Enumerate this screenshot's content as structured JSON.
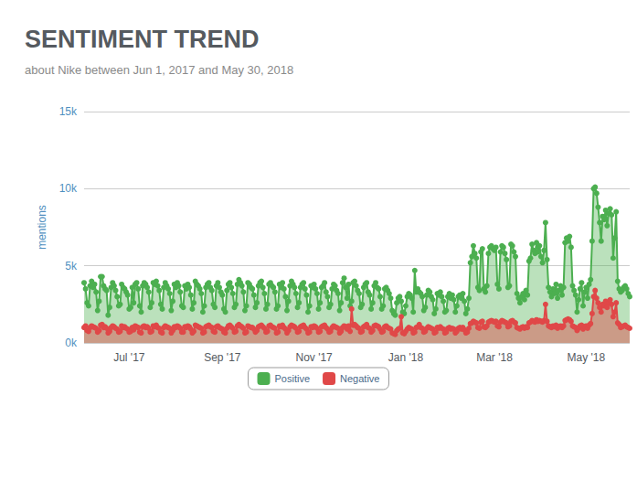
{
  "chart_data": {
    "type": "area",
    "title": "SENTIMENT TREND",
    "subtitle": "about Nike between Jun 1, 2017 and May 30, 2018",
    "ylabel": "mentions",
    "categories": [
      null,
      null,
      null,
      null,
      null,
      null,
      null,
      null,
      null,
      null,
      null,
      null,
      null,
      null,
      null,
      null,
      null,
      null,
      null,
      null,
      null,
      null,
      null,
      null,
      null,
      null,
      null,
      null,
      null,
      null,
      "Jul '17",
      null,
      null,
      null,
      null,
      null,
      null,
      null,
      null,
      null,
      null,
      null,
      null,
      null,
      null,
      null,
      null,
      null,
      null,
      null,
      null,
      null,
      null,
      null,
      null,
      null,
      null,
      null,
      null,
      null,
      null,
      null,
      null,
      null,
      null,
      null,
      null,
      null,
      null,
      null,
      null,
      null,
      null,
      null,
      null,
      null,
      null,
      null,
      null,
      null,
      null,
      null,
      null,
      null,
      null,
      null,
      null,
      null,
      null,
      null,
      null,
      null,
      "Sep '17",
      null,
      null,
      null,
      null,
      null,
      null,
      null,
      null,
      null,
      null,
      null,
      null,
      null,
      null,
      null,
      null,
      null,
      null,
      null,
      null,
      null,
      null,
      null,
      null,
      null,
      null,
      null,
      null,
      null,
      null,
      null,
      null,
      null,
      null,
      null,
      null,
      null,
      null,
      null,
      null,
      null,
      null,
      null,
      null,
      null,
      null,
      null,
      null,
      null,
      null,
      null,
      null,
      null,
      null,
      null,
      null,
      null,
      null,
      null,
      null,
      "Nov '17",
      null,
      null,
      null,
      null,
      null,
      null,
      null,
      null,
      null,
      null,
      null,
      null,
      null,
      null,
      null,
      null,
      null,
      null,
      null,
      null,
      null,
      null,
      null,
      null,
      null,
      null,
      null,
      null,
      null,
      null,
      null,
      null,
      null,
      null,
      null,
      null,
      null,
      null,
      null,
      null,
      null,
      null,
      null,
      null,
      null,
      null,
      null,
      null,
      null,
      null,
      null,
      null,
      null,
      null,
      null,
      null,
      null,
      null,
      null,
      null,
      "Jan '18",
      null,
      null,
      null,
      null,
      null,
      null,
      null,
      null,
      null,
      null,
      null,
      null,
      null,
      null,
      null,
      null,
      null,
      null,
      null,
      null,
      null,
      null,
      null,
      null,
      null,
      null,
      null,
      null,
      null,
      null,
      null,
      null,
      null,
      null,
      null,
      null,
      null,
      null,
      null,
      null,
      null,
      null,
      null,
      null,
      null,
      null,
      null,
      null,
      null,
      null,
      null,
      null,
      null,
      null,
      null,
      null,
      null,
      null,
      "Mar '18",
      null,
      null,
      null,
      null,
      null,
      null,
      null,
      null,
      null,
      null,
      null,
      null,
      null,
      null,
      null,
      null,
      null,
      null,
      null,
      null,
      null,
      null,
      null,
      null,
      null,
      null,
      null,
      null,
      null,
      null,
      null,
      null,
      null,
      null,
      null,
      null,
      null,
      null,
      null,
      null,
      null,
      null,
      null,
      null,
      null,
      null,
      null,
      null,
      null,
      null,
      null,
      null,
      null,
      null,
      null,
      null,
      null,
      null,
      null,
      null,
      "May '18",
      null,
      null,
      null,
      null,
      null,
      null,
      null,
      null,
      null,
      null,
      null,
      null,
      null,
      null,
      null,
      null,
      null,
      null,
      null,
      null,
      null,
      null,
      null,
      null,
      null,
      null,
      null,
      null,
      null
    ],
    "series": [
      {
        "name": "Positive",
        "color": "#4caf50",
        "marker": "circle",
        "values": [
          3900,
          3500,
          2600,
          2400,
          3700,
          4000,
          3600,
          3800,
          3300,
          2100,
          2700,
          4300,
          4300,
          3700,
          3500,
          3400,
          1800,
          2300,
          3600,
          3900,
          3700,
          3400,
          3000,
          2400,
          2500,
          3800,
          3600,
          3500,
          3300,
          3100,
          2200,
          2300,
          3600,
          2600,
          3800,
          3900,
          3500,
          2400,
          2000,
          3700,
          3900,
          3800,
          3600,
          3300,
          2300,
          2600,
          3900,
          3800,
          4000,
          3700,
          3400,
          2500,
          2200,
          3600,
          3900,
          3700,
          3500,
          3200,
          2100,
          2700,
          3800,
          3600,
          3900,
          3700,
          3300,
          2400,
          2300,
          3700,
          3500,
          3800,
          3600,
          3100,
          2200,
          2600,
          4000,
          3800,
          3700,
          3500,
          3200,
          2000,
          2400,
          3600,
          3800,
          3900,
          3600,
          3400,
          2500,
          2300,
          3700,
          3900,
          3600,
          3300,
          3100,
          2200,
          2000,
          3400,
          3800,
          3900,
          3600,
          3200,
          2300,
          2500,
          3800,
          4100,
          3900,
          3700,
          3300,
          2100,
          2400,
          3900,
          3800,
          3600,
          3500,
          3100,
          2300,
          2600,
          3700,
          3900,
          4000,
          3600,
          3200,
          2200,
          2500,
          3800,
          3900,
          3700,
          3600,
          3300,
          2200,
          2400,
          3800,
          3600,
          3900,
          3500,
          3000,
          2100,
          2700,
          3700,
          4000,
          3800,
          3600,
          3200,
          2300,
          2600,
          3600,
          3800,
          3900,
          3500,
          3100,
          2000,
          2400,
          3700,
          3600,
          3800,
          3500,
          3200,
          2200,
          2600,
          3600,
          3700,
          3900,
          3300,
          3000,
          2300,
          2500,
          3500,
          3800,
          3700,
          3400,
          3200,
          2100,
          2600,
          3900,
          4200,
          3600,
          2900,
          3800,
          2400,
          2700,
          3900,
          4000,
          3700,
          3400,
          3200,
          2300,
          2500,
          3600,
          3800,
          3900,
          3300,
          3100,
          2200,
          2600,
          3700,
          3900,
          3600,
          3500,
          3000,
          2200,
          2400,
          3500,
          3600,
          3400,
          3200,
          2900,
          2100,
          1900,
          1800,
          2600,
          2900,
          3000,
          2700,
          2000,
          1900,
          2400,
          3000,
          3200,
          3100,
          2900,
          2000,
          4700,
          3300,
          3500,
          3300,
          3200,
          3000,
          2100,
          2300,
          3100,
          3400,
          3300,
          3000,
          2800,
          1900,
          2200,
          3200,
          3100,
          3300,
          3000,
          2700,
          2000,
          2100,
          3000,
          3200,
          2900,
          3100,
          2800,
          2000,
          2400,
          3000,
          3100,
          2900,
          3200,
          2700,
          1900,
          2200,
          2900,
          5200,
          5600,
          6300,
          5800,
          5500,
          3600,
          3400,
          5900,
          6100,
          3500,
          3300,
          3700,
          5800,
          6200,
          6300,
          6100,
          6000,
          6200,
          3800,
          3500,
          5900,
          6300,
          6200,
          5800,
          5400,
          3600,
          3700,
          6400,
          6300,
          5900,
          5600,
          3200,
          2900,
          2600,
          3000,
          3200,
          2800,
          3400,
          3100,
          5300,
          5500,
          6400,
          6000,
          5800,
          6500,
          5900,
          6300,
          5600,
          5200,
          6000,
          7800,
          5400,
          3600,
          3300,
          3000,
          3500,
          3200,
          3800,
          2900,
          3400,
          3700,
          3100,
          3600,
          6500,
          6800,
          6600,
          6900,
          6200,
          3700,
          3400,
          3100,
          2000,
          2800,
          3500,
          3900,
          2400,
          3300,
          3600,
          2900,
          3800,
          4100,
          6600,
          10000,
          10100,
          9700,
          8800,
          7800,
          6600,
          8200,
          8000,
          8600,
          7600,
          8400,
          8700,
          8300,
          5500,
          6800,
          8500,
          4000,
          3500,
          3300,
          3400,
          3600,
          3700,
          3500,
          3200,
          3000
        ]
      },
      {
        "name": "Negative",
        "color": "#e04848",
        "marker": "circle",
        "values": [
          1000,
          1100,
          800,
          750,
          1000,
          1100,
          1050,
          1000,
          950,
          700,
          800,
          1150,
          1200,
          1000,
          1050,
          950,
          650,
          750,
          1000,
          1100,
          1050,
          950,
          900,
          700,
          750,
          1100,
          1000,
          1050,
          950,
          900,
          700,
          750,
          1000,
          850,
          1100,
          1050,
          1000,
          700,
          650,
          1050,
          1100,
          1000,
          1050,
          950,
          700,
          750,
          1100,
          1050,
          1150,
          1000,
          950,
          700,
          650,
          1000,
          1100,
          1050,
          1000,
          950,
          650,
          800,
          1050,
          1000,
          1100,
          1050,
          950,
          700,
          700,
          1050,
          1000,
          1100,
          1050,
          900,
          650,
          750,
          1150,
          1100,
          1050,
          1000,
          950,
          650,
          700,
          1050,
          1100,
          1150,
          1050,
          1000,
          750,
          700,
          1050,
          1100,
          1000,
          950,
          900,
          700,
          650,
          950,
          1100,
          1150,
          1050,
          950,
          700,
          750,
          1100,
          1200,
          1100,
          1050,
          950,
          650,
          700,
          1100,
          1050,
          1000,
          1000,
          900,
          700,
          800,
          1050,
          1100,
          1150,
          1050,
          950,
          700,
          750,
          1100,
          1150,
          1050,
          1000,
          950,
          650,
          700,
          1100,
          1050,
          1150,
          1000,
          900,
          650,
          800,
          1050,
          1150,
          1100,
          1050,
          950,
          700,
          750,
          1050,
          1100,
          1150,
          1000,
          900,
          650,
          700,
          1050,
          1000,
          1100,
          1050,
          950,
          700,
          750,
          1050,
          1100,
          1150,
          1000,
          900,
          700,
          750,
          1000,
          1100,
          1050,
          1000,
          950,
          650,
          750,
          1000,
          1100,
          1050,
          900,
          1100,
          750,
          2200,
          1150,
          1200,
          1100,
          1000,
          950,
          700,
          750,
          1050,
          1100,
          1200,
          1000,
          950,
          700,
          800,
          1100,
          1150,
          1100,
          1050,
          900,
          700,
          750,
          1050,
          1100,
          1000,
          950,
          900,
          650,
          600,
          550,
          800,
          900,
          950,
          1700,
          650,
          600,
          750,
          900,
          1000,
          950,
          900,
          650,
          700,
          1000,
          1050,
          1200,
          1000,
          950,
          700,
          750,
          950,
          1050,
          1000,
          950,
          900,
          650,
          700,
          1000,
          950,
          1050,
          950,
          900,
          650,
          700,
          950,
          1000,
          900,
          950,
          900,
          650,
          750,
          950,
          1000,
          900,
          1000,
          850,
          650,
          700,
          950,
          1250,
          1300,
          1400,
          1350,
          1300,
          1000,
          950,
          1350,
          1400,
          1050,
          1000,
          1100,
          1350,
          1400,
          1450,
          1400,
          1350,
          1400,
          1100,
          1050,
          1350,
          1450,
          1400,
          1350,
          1300,
          1050,
          1100,
          1400,
          1450,
          1350,
          1300,
          1000,
          950,
          900,
          1000,
          1050,
          950,
          1050,
          1000,
          1300,
          1350,
          1450,
          1400,
          1350,
          1500,
          1400,
          1450,
          1400,
          1350,
          1450,
          2500,
          1400,
          1100,
          1050,
          1000,
          1100,
          1050,
          1150,
          950,
          1050,
          1100,
          1000,
          1100,
          1450,
          1500,
          1550,
          1500,
          1400,
          1100,
          1050,
          1000,
          800,
          950,
          1100,
          1150,
          900,
          1050,
          1100,
          950,
          1150,
          1250,
          1900,
          3000,
          3400,
          2900,
          2600,
          2300,
          2000,
          2500,
          2400,
          2700,
          2300,
          2600,
          2800,
          2500,
          1700,
          2000,
          2600,
          1300,
          1200,
          1000,
          1050,
          1100,
          1150,
          1050,
          1000,
          950
        ]
      }
    ],
    "ylim": [
      0,
      15000
    ],
    "yticks": [
      {
        "value": 0,
        "label": "0k"
      },
      {
        "value": 5000,
        "label": "5k"
      },
      {
        "value": 10000,
        "label": "10k"
      },
      {
        "value": 15000,
        "label": "15k"
      }
    ],
    "grid": true,
    "legend": "bottom"
  }
}
